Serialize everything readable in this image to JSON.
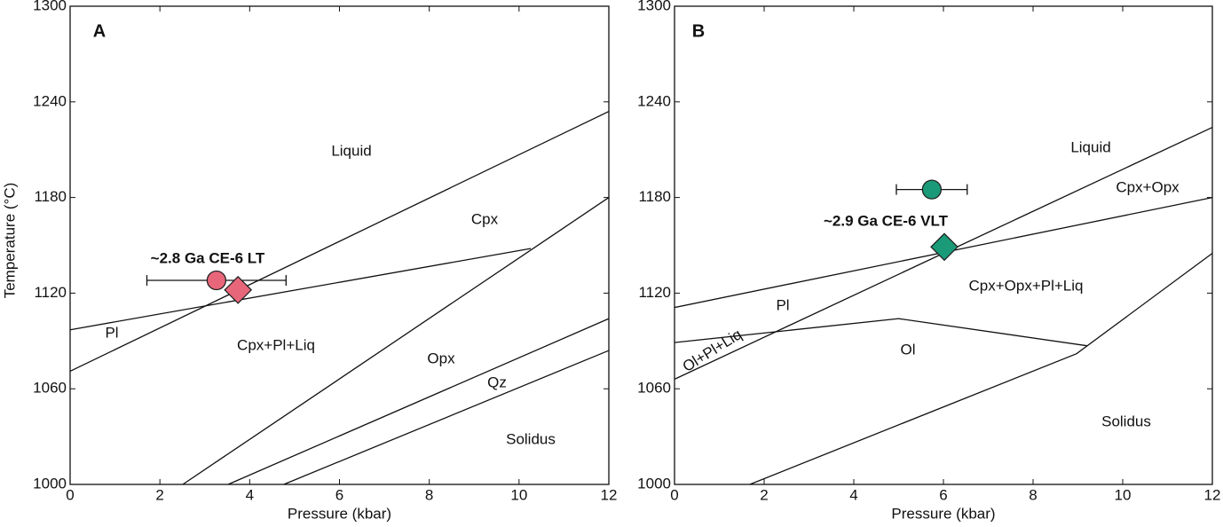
{
  "chart_data": [
    {
      "type": "line",
      "panel_label": "A",
      "xlabel": "Pressure (kbar)",
      "ylabel": "Temperature (°C)",
      "xlim": [
        0,
        12
      ],
      "ylim": [
        1000,
        1300
      ],
      "xticks": [
        0,
        2,
        4,
        6,
        8,
        10,
        12
      ],
      "yticks": [
        1000,
        1060,
        1120,
        1180,
        1240,
        1300
      ],
      "series": [
        {
          "color": "#111111",
          "x": [
            0,
            12
          ],
          "values": [
            1071,
            1234
          ]
        },
        {
          "color": "#111111",
          "x": [
            0,
            10.26
          ],
          "values": [
            1097,
            1148
          ]
        },
        {
          "color": "#111111",
          "x": [
            2.51,
            12
          ],
          "values": [
            1000,
            1180
          ]
        },
        {
          "color": "#111111",
          "x": [
            3.52,
            12
          ],
          "values": [
            1000,
            1104
          ]
        },
        {
          "color": "#111111",
          "x": [
            4.76,
            12
          ],
          "values": [
            1000,
            1084
          ]
        }
      ],
      "points": [
        {
          "shape": "circle",
          "color": "#e8667a",
          "x": 3.26,
          "y": 1128,
          "xerr": 1.55
        },
        {
          "shape": "diamond",
          "color": "#e8667a",
          "x": 3.74,
          "y": 1122
        }
      ],
      "point_label": "~2.8 Ga CE-6 LT",
      "annotations": [
        "Liquid",
        "Cpx",
        "Pl",
        "Cpx+Pl+Liq",
        "Opx",
        "Qz",
        "Solidus"
      ]
    },
    {
      "type": "line",
      "panel_label": "B",
      "xlabel": "Pressure (kbar)",
      "xlim": [
        0,
        12
      ],
      "ylim": [
        1000,
        1300
      ],
      "xticks": [
        0,
        2,
        4,
        6,
        8,
        10,
        12
      ],
      "yticks": [
        1000,
        1060,
        1120,
        1180,
        1240,
        1300
      ],
      "series": [
        {
          "color": "#111111",
          "x": [
            0,
            12
          ],
          "values": [
            1066,
            1224
          ]
        },
        {
          "color": "#111111",
          "x": [
            0,
            12
          ],
          "values": [
            1111,
            1180
          ]
        },
        {
          "color": "#111111",
          "x": [
            0,
            5.0,
            9.2
          ],
          "values": [
            1089,
            1104,
            1087
          ]
        },
        {
          "color": "#111111",
          "x": [
            1.68,
            8.97,
            12
          ],
          "values": [
            1000,
            1082,
            1145
          ]
        }
      ],
      "points": [
        {
          "shape": "circle",
          "color": "#1a9a78",
          "x": 5.74,
          "y": 1185,
          "xerr": 0.79
        },
        {
          "shape": "diamond",
          "color": "#1a9a78",
          "x": 6.02,
          "y": 1149
        }
      ],
      "point_label": "~2.9 Ga CE-6 VLT",
      "annotations": [
        "Liquid",
        "Cpx+Opx",
        "Pl",
        "Cpx+Opx+Pl+Liq",
        "Ol+Pl+Liq",
        "Ol",
        "Solidus"
      ]
    }
  ]
}
